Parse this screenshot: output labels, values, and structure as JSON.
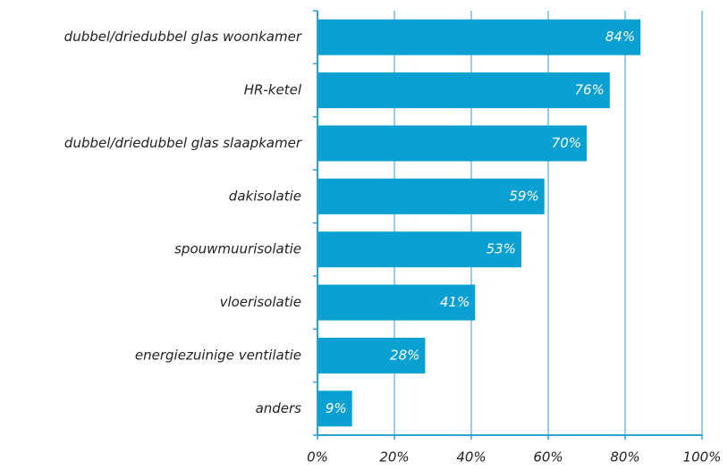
{
  "chart_data": {
    "type": "bar",
    "orientation": "horizontal",
    "categories": [
      "dubbel/driedubbel glas woonkamer",
      "HR-ketel",
      "dubbel/driedubbel glas slaapkamer",
      "dakisolatie",
      "spouwmuurisolatie",
      "vloerisolatie",
      "energiezuinige ventilatie",
      "anders"
    ],
    "values": [
      84,
      76,
      70,
      59,
      53,
      41,
      28,
      9
    ],
    "value_labels": [
      "84%",
      "76%",
      "70%",
      "59%",
      "53%",
      "41%",
      "28%",
      "9%"
    ],
    "color": "#0aa0d2",
    "xlim": [
      0,
      100
    ],
    "xticks": [
      {
        "value": 0,
        "label": "0%"
      },
      {
        "value": 20,
        "label": "20%"
      },
      {
        "value": 40,
        "label": "40%"
      },
      {
        "value": 60,
        "label": "60%"
      },
      {
        "value": 80,
        "label": "80%"
      },
      {
        "value": 100,
        "label": "100%"
      }
    ],
    "grid": true
  }
}
